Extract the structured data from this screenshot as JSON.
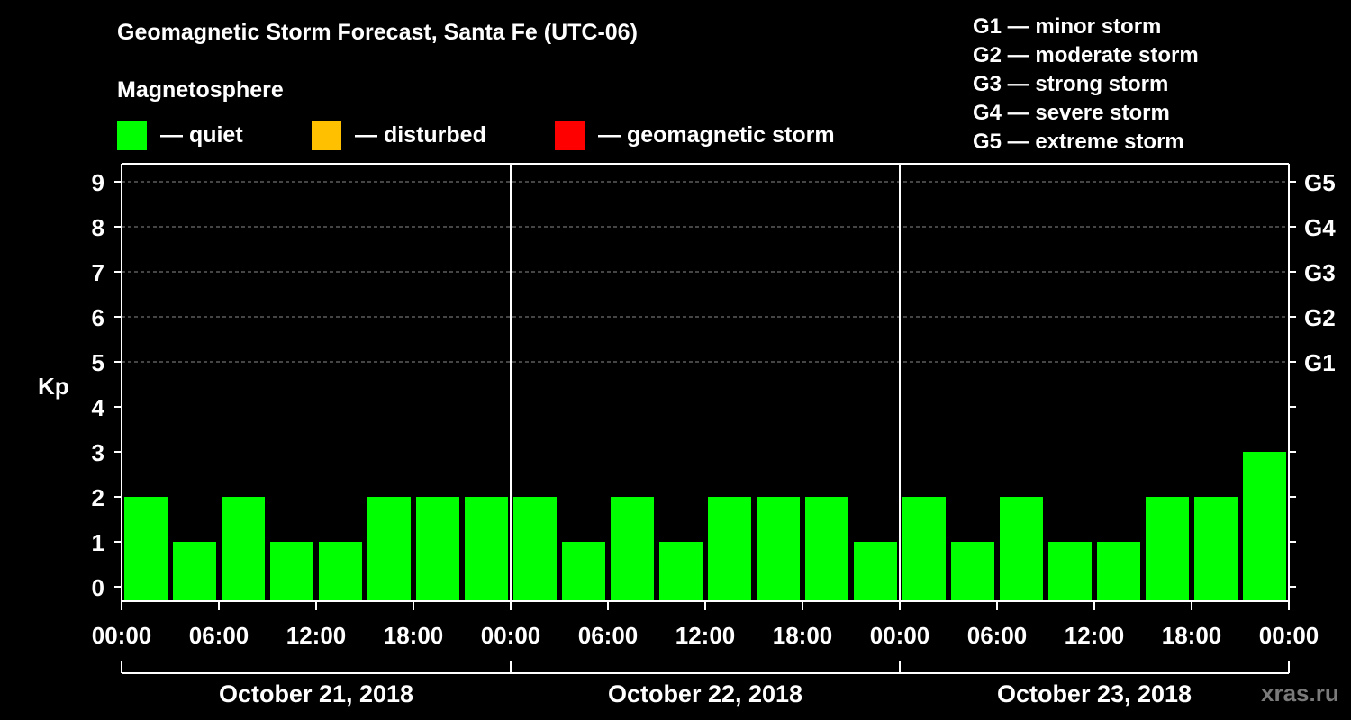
{
  "chart_data": {
    "type": "bar",
    "title": "Geomagnetic Storm Forecast, Santa Fe (UTC-06)",
    "subtitle": "Magnetosphere",
    "ylabel": "Kp",
    "ylim": [
      0,
      9
    ],
    "y_ticks": [
      "0",
      "1",
      "2",
      "3",
      "4",
      "5",
      "6",
      "7",
      "8",
      "9"
    ],
    "right_axis_ticks": [
      {
        "kp": 5,
        "label": "G1"
      },
      {
        "kp": 6,
        "label": "G2"
      },
      {
        "kp": 7,
        "label": "G3"
      },
      {
        "kp": 8,
        "label": "G4"
      },
      {
        "kp": 9,
        "label": "G5"
      }
    ],
    "x_tick_labels": [
      "00:00",
      "06:00",
      "12:00",
      "18:00",
      "00:00",
      "06:00",
      "12:00",
      "18:00",
      "00:00",
      "06:00",
      "12:00",
      "18:00",
      "00:00"
    ],
    "days": [
      "October 21, 2018",
      "October 22, 2018",
      "October 23, 2018"
    ],
    "values": [
      2,
      1,
      2,
      1,
      1,
      2,
      2,
      2,
      2,
      1,
      2,
      1,
      2,
      2,
      2,
      1,
      2,
      1,
      2,
      1,
      1,
      2,
      2,
      3
    ],
    "legend": [
      {
        "label": "— quiet",
        "color": "#00ff00"
      },
      {
        "label": "— disturbed",
        "color": "#ffc000"
      },
      {
        "label": "— geomagnetic storm",
        "color": "#ff0000"
      }
    ],
    "storm_scale": [
      "G1 — minor storm",
      "G2 — moderate storm",
      "G3 — strong storm",
      "G4 — severe storm",
      "G5 — extreme storm"
    ],
    "grid": true
  },
  "watermark": "xras.ru"
}
